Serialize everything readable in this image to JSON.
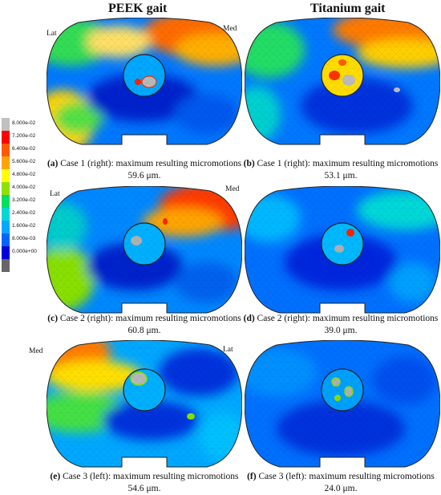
{
  "columns": {
    "peek": "PEEK gait",
    "titanium": "Titanium gait"
  },
  "side_labels": {
    "a_lat": "Lat",
    "a_med": "Med",
    "c_lat": "Lat",
    "c_med": "Med",
    "e_med": "Med",
    "e_lat": "Lat"
  },
  "legend": {
    "items": [
      {
        "label": "8.000e-02",
        "color": "#c0c0c0"
      },
      {
        "label": "7.200e-02",
        "color": "#ff0000"
      },
      {
        "label": "6.400e-02",
        "color": "#ff5a00"
      },
      {
        "label": "5.600e-02",
        "color": "#ffa500"
      },
      {
        "label": "4.800e-02",
        "color": "#ffff00"
      },
      {
        "label": "4.000e-02",
        "color": "#8ee000"
      },
      {
        "label": "3.200e-02",
        "color": "#00e060"
      },
      {
        "label": "2.400e-02",
        "color": "#00d8d8"
      },
      {
        "label": "1.600e-02",
        "color": "#00a8ff"
      },
      {
        "label": "8.000e-03",
        "color": "#0064ff"
      },
      {
        "label": "0.000e+00",
        "color": "#0000dd"
      },
      {
        "label": "",
        "color": "#666666"
      }
    ]
  },
  "captions": {
    "a": {
      "letter": "(a)",
      "text": " Case 1 (right): maximum resulting micromotions 59.6 μm."
    },
    "b": {
      "letter": "(b)",
      "text": " Case 1 (right): maximum resulting micromotions 53.1 μm."
    },
    "c": {
      "letter": "(c)",
      "text": " Case 2 (right): maximum resulting micromotions 60.8 μm."
    },
    "d": {
      "letter": "(d)",
      "text": " Case 2 (right): maximum resulting micromotions 39.0 μm."
    },
    "e": {
      "letter": "(e)",
      "text": " Case 3 (left): maximum resulting micromotions 54.6 μm."
    },
    "f": {
      "letter": "(f)",
      "text": " Case 3 (left): maximum resulting micromotions 24.0 μm."
    }
  }
}
